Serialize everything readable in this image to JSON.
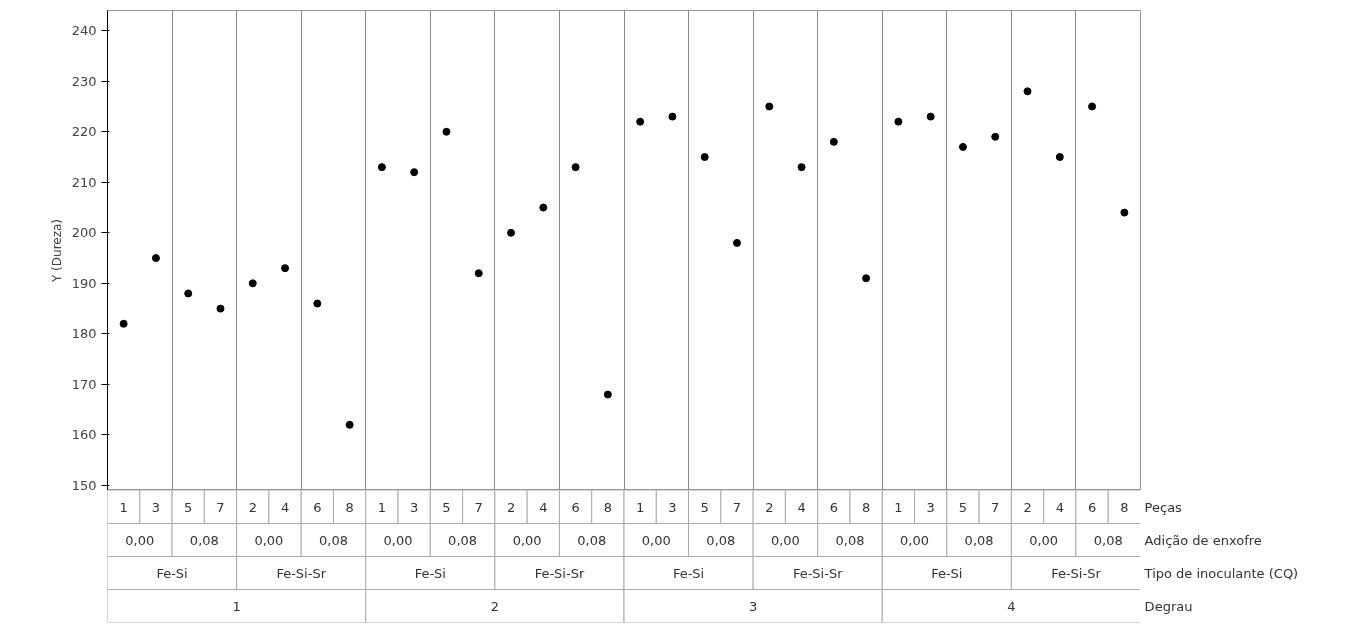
{
  "chart_data": {
    "type": "scatter",
    "ylabel": "Y (Dureza)",
    "categories": [
      "1",
      "3",
      "5",
      "7",
      "2",
      "4",
      "6",
      "8",
      "1",
      "3",
      "5",
      "7",
      "2",
      "4",
      "6",
      "8",
      "1",
      "3",
      "5",
      "7",
      "2",
      "4",
      "6",
      "8",
      "1",
      "3",
      "5",
      "7",
      "2",
      "4",
      "6",
      "8"
    ],
    "series": [
      {
        "color": "#000000",
        "values": [
          182,
          195,
          188,
          185,
          190,
          193,
          186,
          162,
          213,
          212,
          220,
          192,
          200,
          205,
          213,
          168,
          222,
          223,
          215,
          198,
          225,
          213,
          218,
          191,
          222,
          223,
          217,
          219,
          228,
          215,
          225,
          204
        ]
      }
    ],
    "annotations": [
      "Peças",
      "0,00",
      "0,08",
      "0,00",
      "0,08",
      "0,00",
      "0,08",
      "0,00",
      "0,08",
      "0,00",
      "0,08",
      "0,00",
      "0,08",
      "0,00",
      "0,08",
      "0,00",
      "0,08",
      "Adição de enxofre",
      "Fe-Si",
      "Fe-Si-Sr",
      "Fe-Si",
      "Fe-Si-Sr",
      "Fe-Si",
      "Fe-Si-Sr",
      "Fe-Si",
      "Fe-Si-Sr",
      "Tipo de inoculante (CQ)",
      "1",
      "2",
      "3",
      "4",
      "Degrau"
    ],
    "ylim": [
      149,
      244
    ],
    "yticks": [
      150,
      160,
      170,
      180,
      190,
      200,
      210,
      220,
      230,
      240
    ],
    "grid": "x",
    "marker": "circle"
  }
}
